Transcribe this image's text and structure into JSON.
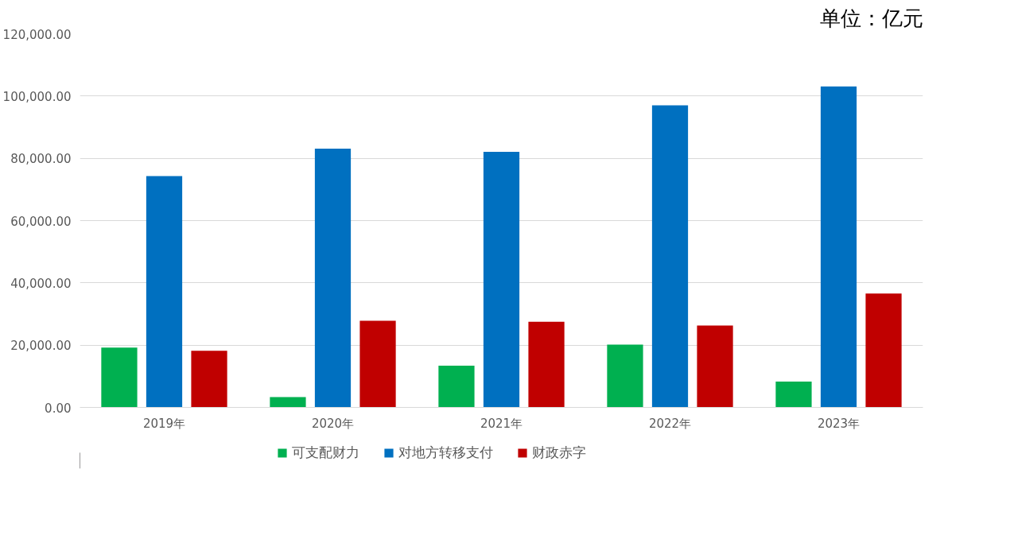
{
  "chart_data": {
    "type": "bar",
    "categories": [
      "2019年",
      "2020年",
      "2021年",
      "2022年",
      "2023年"
    ],
    "series": [
      {
        "name": "可支配财力",
        "color": "#00b050",
        "values": [
          19200,
          3300,
          13400,
          20200,
          8300
        ]
      },
      {
        "name": "对地方转移支付",
        "color": "#0070c0",
        "values": [
          74300,
          83100,
          82100,
          97000,
          103100
        ]
      },
      {
        "name": "财政赤字",
        "color": "#c00000",
        "values": [
          18200,
          27800,
          27500,
          26300,
          36600
        ]
      }
    ],
    "ylim": [
      0,
      120000
    ],
    "yticks": [
      {
        "value": 0,
        "label": "0.00"
      },
      {
        "value": 20000,
        "label": "20,000.00"
      },
      {
        "value": 40000,
        "label": "40,000.00"
      },
      {
        "value": 60000,
        "label": "60,000.00"
      },
      {
        "value": 80000,
        "label": "80,000.00"
      },
      {
        "value": 100000,
        "label": "100,000.00"
      },
      {
        "value": 120000,
        "label": "120,000.00"
      }
    ],
    "annotations": [
      "单位：亿元"
    ],
    "grid": "y",
    "legend": "bottom"
  }
}
